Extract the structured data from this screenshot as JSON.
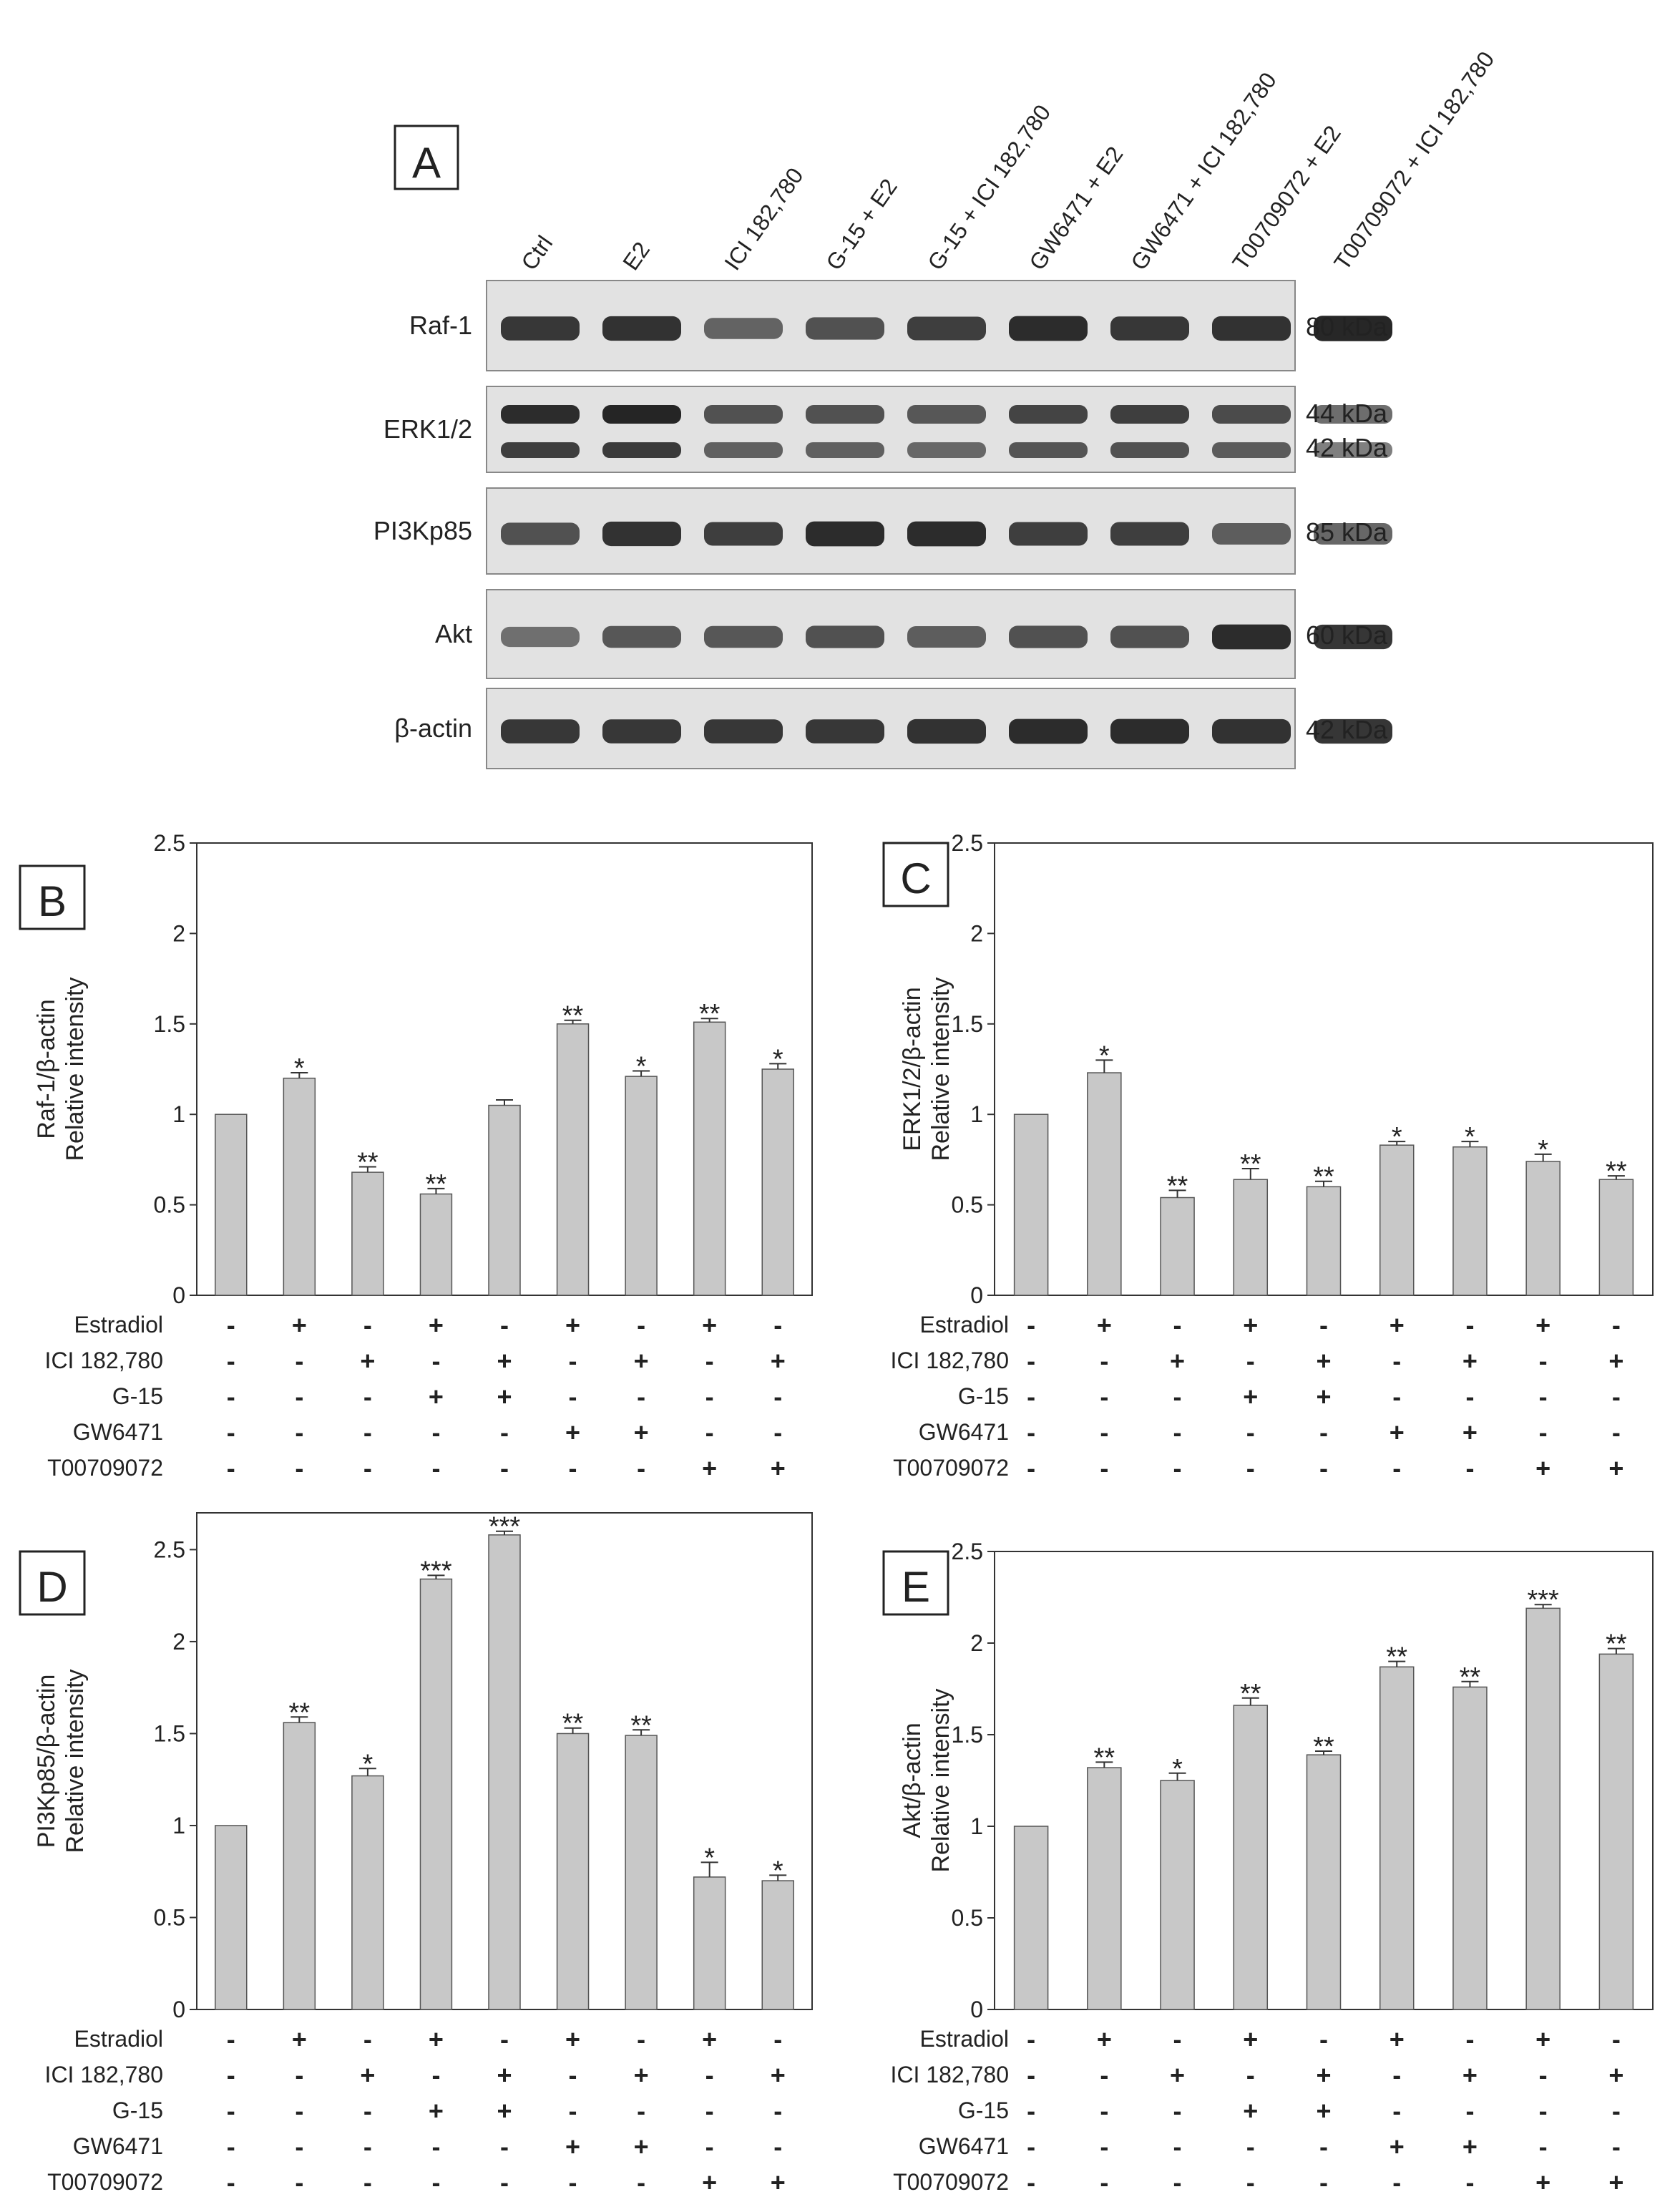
{
  "panel_a": {
    "label": "A",
    "lanes": [
      "Ctrl",
      "E2",
      "ICI 182,780",
      "G-15 + E2",
      "G-15 + ICI 182,780",
      "GW6471 + E2",
      "GW6471 + ICI 182,780",
      "T00709072 + E2",
      "T00709072 + ICI 182,780"
    ],
    "blots": [
      {
        "name": "Raf-1",
        "kda": [
          "80 kDa"
        ],
        "intensity": [
          0.8,
          0.85,
          0.45,
          0.6,
          0.75,
          0.9,
          0.8,
          0.85,
          0.95
        ]
      },
      {
        "name": "ERK1/2",
        "kda": [
          "44 kDa",
          "42 kDa"
        ],
        "intensity": [
          0.9,
          0.95,
          0.6,
          0.6,
          0.55,
          0.7,
          0.75,
          0.65,
          0.45
        ]
      },
      {
        "name": "PI3Kp85",
        "kda": [
          "85 kDa"
        ],
        "intensity": [
          0.6,
          0.85,
          0.75,
          0.9,
          0.9,
          0.75,
          0.75,
          0.5,
          0.5
        ]
      },
      {
        "name": "Akt",
        "kda": [
          "60 kDa"
        ],
        "intensity": [
          0.35,
          0.55,
          0.55,
          0.6,
          0.5,
          0.6,
          0.6,
          0.9,
          0.85
        ]
      },
      {
        "name": "β-actin",
        "kda": [
          "42 kDa"
        ],
        "intensity": [
          0.8,
          0.8,
          0.8,
          0.8,
          0.85,
          0.9,
          0.9,
          0.85,
          0.85
        ]
      }
    ]
  },
  "treatment_rows": [
    {
      "name": "Estradiol",
      "signs": [
        "-",
        "+",
        "-",
        "+",
        "-",
        "+",
        "-",
        "+",
        "-"
      ]
    },
    {
      "name": "ICI 182,780",
      "signs": [
        "-",
        "-",
        "+",
        "-",
        "+",
        "-",
        "+",
        "-",
        "+"
      ]
    },
    {
      "name": "G-15",
      "signs": [
        "-",
        "-",
        "-",
        "+",
        "+",
        "-",
        "-",
        "-",
        "-"
      ]
    },
    {
      "name": "GW6471",
      "signs": [
        "-",
        "-",
        "-",
        "-",
        "-",
        "+",
        "+",
        "-",
        "-"
      ]
    },
    {
      "name": "T00709072",
      "signs": [
        "-",
        "-",
        "-",
        "-",
        "-",
        "-",
        "-",
        "+",
        "+"
      ]
    }
  ],
  "chart_data": [
    {
      "id": "B",
      "type": "bar",
      "ylabel": [
        "Raf-1/β-actin",
        "Relative intensity"
      ],
      "ylim": [
        0,
        2.5
      ],
      "yticks": [
        0,
        0.5,
        1,
        1.5,
        2,
        2.5
      ],
      "ytick_labels": [
        "0",
        "0.5",
        "1",
        "1.5",
        "2",
        "2.5"
      ],
      "values": [
        1.0,
        1.2,
        0.68,
        0.56,
        1.05,
        1.5,
        1.21,
        1.51,
        1.25
      ],
      "errors": [
        0,
        0.03,
        0.03,
        0.03,
        0.03,
        0.02,
        0.03,
        0.02,
        0.03
      ],
      "sig": [
        "",
        "*",
        "**",
        "**",
        "",
        "**",
        "*",
        "**",
        "*"
      ]
    },
    {
      "id": "C",
      "type": "bar",
      "ylabel": [
        "ERK1/2/β-actin",
        "Relative intensity"
      ],
      "ylim": [
        0,
        2.5
      ],
      "yticks": [
        0,
        0.5,
        1,
        1.5,
        2,
        2.5
      ],
      "ytick_labels": [
        "0",
        "0.5",
        "1",
        "1.5",
        "2",
        "2.5"
      ],
      "values": [
        1.0,
        1.23,
        0.54,
        0.64,
        0.6,
        0.83,
        0.82,
        0.74,
        0.64
      ],
      "errors": [
        0,
        0.07,
        0.04,
        0.06,
        0.03,
        0.02,
        0.03,
        0.04,
        0.02
      ],
      "sig": [
        "",
        "*",
        "**",
        "**",
        "**",
        "*",
        "*",
        "*",
        "**"
      ]
    },
    {
      "id": "D",
      "type": "bar",
      "ylabel": [
        "PI3Kp85/β-actin",
        "Relative intensity"
      ],
      "ylim": [
        0,
        2.7
      ],
      "yticks": [
        0,
        0.5,
        1,
        1.5,
        2,
        2.5
      ],
      "ytick_labels": [
        "0",
        "0.5",
        "1",
        "1.5",
        "2",
        "2.5"
      ],
      "values": [
        1.0,
        1.56,
        1.27,
        2.34,
        2.58,
        1.5,
        1.49,
        0.72,
        0.7
      ],
      "errors": [
        0,
        0.03,
        0.04,
        0.02,
        0.02,
        0.03,
        0.03,
        0.08,
        0.03
      ],
      "sig": [
        "",
        "**",
        "*",
        "***",
        "***",
        "**",
        "**",
        "*",
        "*"
      ]
    },
    {
      "id": "E",
      "type": "bar",
      "ylabel": [
        "Akt/β-actin",
        "Relative intensity"
      ],
      "ylim": [
        0,
        2.5
      ],
      "yticks": [
        0,
        0.5,
        1,
        1.5,
        2,
        2.5
      ],
      "ytick_labels": [
        "0",
        "0.5",
        "1",
        "1.5",
        "2",
        "2.5"
      ],
      "values": [
        1.0,
        1.32,
        1.25,
        1.66,
        1.39,
        1.87,
        1.76,
        2.19,
        1.94
      ],
      "errors": [
        0,
        0.03,
        0.04,
        0.04,
        0.02,
        0.03,
        0.03,
        0.02,
        0.03
      ],
      "sig": [
        "",
        "**",
        "*",
        "**",
        "**",
        "**",
        "**",
        "***",
        "**"
      ]
    }
  ],
  "colors": {
    "bar": "#c8c8c8",
    "bar_edge": "#555555",
    "axis": "#333333",
    "band": "#151515"
  }
}
